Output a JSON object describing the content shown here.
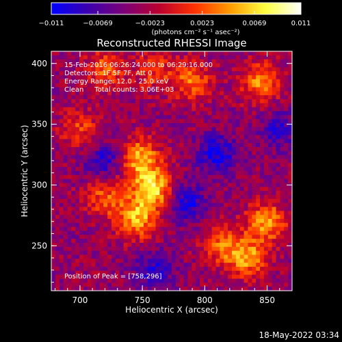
{
  "chart_data": {
    "type": "heatmap",
    "title": "Reconstructed RHESSI Image",
    "xlabel": "Heliocentric X (arcsec)",
    "ylabel": "Heliocentric Y (arcsec)",
    "xlim": [
      677,
      870
    ],
    "ylim": [
      213,
      410
    ],
    "x_ticks": [
      700,
      750,
      800,
      850
    ],
    "y_ticks": [
      250,
      300,
      350,
      400
    ],
    "colorbar": {
      "range": [
        -0.011,
        0.011
      ],
      "tick_values": [
        -0.011,
        -0.0069,
        -0.0023,
        0.0023,
        0.0069,
        0.011
      ],
      "tick_labels": [
        "−0.011",
        "−0.0069",
        "−0.0023",
        "0.0023",
        "0.0069",
        "0.011"
      ],
      "unit_label": "(photons cm⁻² s⁻¹ asec⁻²)",
      "colors": [
        "#0000ff",
        "#3a00b0",
        "#7a007a",
        "#b80030",
        "#ff3000",
        "#ff9a00",
        "#ffff40",
        "#ffffff"
      ]
    },
    "peak": [
      758,
      296
    ],
    "annotations": {
      "time": "15-Feb-2016 06:26:24.000 to 06:29:16.000",
      "detectors": "Detectors: 1F 5F 7F, Att 0",
      "energy": "Energy Range: 12.0 - 25.0 keV",
      "clean": "Clean     Total counts: 3.06E+03",
      "peak_text": "Position of Peak = [758,296]"
    },
    "bright_regions": [
      {
        "x": 758,
        "y": 296,
        "level": 1.0
      },
      {
        "x": 748,
        "y": 322,
        "level": 0.85
      },
      {
        "x": 745,
        "y": 272,
        "level": 0.8
      },
      {
        "x": 720,
        "y": 290,
        "level": 0.55
      },
      {
        "x": 700,
        "y": 345,
        "level": 0.45
      },
      {
        "x": 850,
        "y": 270,
        "level": 0.75
      },
      {
        "x": 835,
        "y": 240,
        "level": 0.7
      },
      {
        "x": 790,
        "y": 385,
        "level": 0.6
      },
      {
        "x": 845,
        "y": 385,
        "level": 0.7
      },
      {
        "x": 720,
        "y": 395,
        "level": 0.55
      },
      {
        "x": 760,
        "y": 395,
        "level": 0.45
      },
      {
        "x": 815,
        "y": 250,
        "level": 0.55
      }
    ],
    "dark_regions": [
      {
        "x": 810,
        "y": 325,
        "level": -0.6
      },
      {
        "x": 720,
        "y": 320,
        "level": -0.5
      },
      {
        "x": 760,
        "y": 230,
        "level": -0.45
      },
      {
        "x": 785,
        "y": 285,
        "level": -0.55
      },
      {
        "x": 860,
        "y": 345,
        "level": -0.4
      }
    ]
  },
  "footer": {
    "timestamp": "18-May-2022 03:34"
  }
}
